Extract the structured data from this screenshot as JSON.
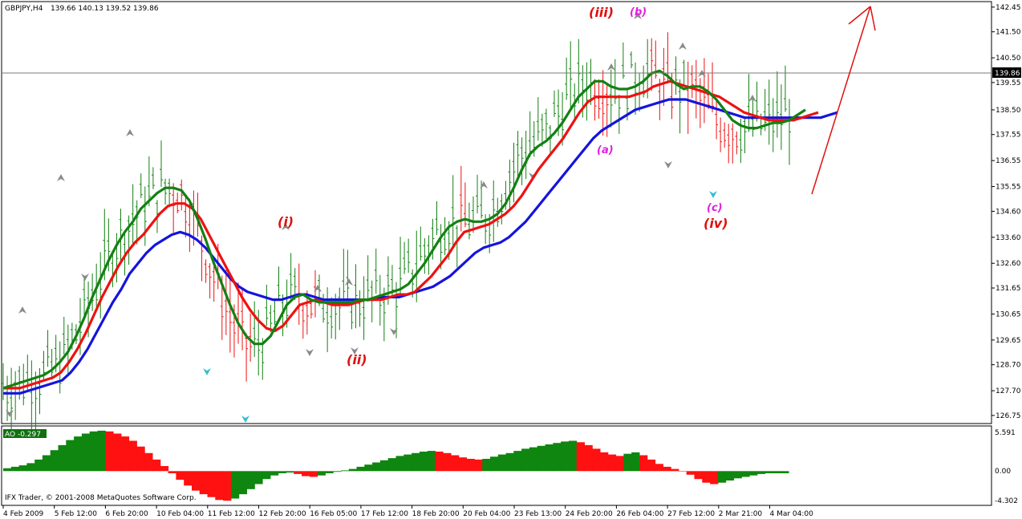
{
  "header": {
    "symbol": "GBPJPY,H4",
    "ohlc": "139.66 140.13 139.52 139.86"
  },
  "price_axis": {
    "ticks": [
      "142.45",
      "141.50",
      "140.50",
      "139.55",
      "138.50",
      "137.55",
      "136.55",
      "135.55",
      "134.60",
      "133.60",
      "132.60",
      "131.65",
      "130.65",
      "129.65",
      "128.70",
      "127.70",
      "126.75"
    ],
    "current_price_label": "139.86"
  },
  "oscillator": {
    "label": "AO -0.297",
    "ticks": [
      "5.591",
      "0.00",
      "-4.302"
    ]
  },
  "copyright": "IFX Trader, © 2001-2008 MetaQuotes Software Corp.",
  "time_axis": {
    "labels": [
      "4 Feb 2009",
      "5 Feb 12:00",
      "6 Feb 20:00",
      "10 Feb 04:00",
      "11 Feb 12:00",
      "12 Feb 20:00",
      "16 Feb 05:00",
      "17 Feb 12:00",
      "18 Feb 20:00",
      "20 Feb 04:00",
      "23 Feb 13:00",
      "24 Feb 20:00",
      "26 Feb 04:00",
      "27 Feb 12:00",
      "2 Mar 21:00",
      "4 Mar 04:00"
    ]
  },
  "wave_labels": [
    {
      "text": "(i)",
      "color": "#e01010"
    },
    {
      "text": "(ii)",
      "color": "#e01010"
    },
    {
      "text": "(iii)",
      "color": "#e01010"
    },
    {
      "text": "(iv)",
      "color": "#e01010"
    },
    {
      "text": "(a)",
      "color": "#e020e0"
    },
    {
      "text": "(b)",
      "color": "#e020e0"
    },
    {
      "text": "(c)",
      "color": "#e020e0"
    }
  ],
  "colors": {
    "green_line": "#138013",
    "red_line": "#ee1111",
    "blue_line": "#1414dd",
    "bull_bar": "#138013",
    "bear_bar": "#ee1111",
    "ao_up": "#0f860f",
    "ao_down": "#ff1111"
  },
  "chart_data": {
    "type": "line",
    "title": "GBPJPY,H4",
    "ylim": [
      126.5,
      142.6
    ],
    "x_count": 100,
    "series": [
      {
        "values": [
          127.8,
          127.9,
          128.0,
          128.1,
          128.2,
          128.3,
          128.5,
          128.8,
          129.2,
          129.8,
          130.5,
          131.3,
          132.0,
          132.7,
          133.3,
          133.8,
          134.2,
          134.7,
          135.0,
          135.3,
          135.5,
          135.5,
          135.4,
          135.0,
          134.3,
          133.5,
          132.6,
          131.8,
          131.0,
          130.3,
          129.8,
          129.5,
          129.5,
          129.8,
          130.4,
          131.0,
          131.3,
          131.4,
          131.2,
          131.1,
          131.1,
          131.1,
          131.1,
          131.1,
          131.2,
          131.2,
          131.3,
          131.4,
          131.5,
          131.6,
          131.8,
          132.2,
          132.6,
          133.1,
          133.6,
          134.0,
          134.2,
          134.3,
          134.2,
          134.2,
          134.3,
          134.5,
          134.9,
          135.5,
          136.2,
          136.8,
          137.1,
          137.3,
          137.6,
          138.0,
          138.5,
          139.0,
          139.3,
          139.6,
          139.6,
          139.4,
          139.3,
          139.3,
          139.4,
          139.6,
          139.9,
          140.0,
          139.8,
          139.5,
          139.3,
          139.4,
          139.4,
          139.2,
          138.9,
          138.5,
          138.1,
          137.9,
          137.8,
          137.8,
          137.9,
          138.0,
          138.0,
          138.1,
          138.3,
          138.5
        ]
      },
      {
        "values": [
          127.8,
          127.8,
          127.8,
          127.9,
          128.0,
          128.1,
          128.2,
          128.4,
          128.8,
          129.3,
          129.9,
          130.6,
          131.3,
          131.9,
          132.5,
          133.0,
          133.4,
          133.7,
          134.1,
          134.5,
          134.8,
          134.9,
          134.9,
          134.7,
          134.3,
          133.7,
          133.1,
          132.5,
          131.9,
          131.3,
          130.8,
          130.4,
          130.1,
          130.0,
          130.2,
          130.6,
          131.0,
          131.1,
          131.2,
          131.1,
          131.0,
          131.0,
          131.0,
          131.1,
          131.2,
          131.2,
          131.2,
          131.3,
          131.4,
          131.4,
          131.5,
          131.8,
          132.1,
          132.5,
          132.9,
          133.4,
          133.8,
          133.9,
          134.0,
          134.1,
          134.3,
          134.5,
          134.8,
          135.2,
          135.7,
          136.2,
          136.6,
          137.0,
          137.4,
          137.9,
          138.4,
          138.8,
          139.0,
          139.0,
          139.0,
          139.0,
          139.0,
          139.1,
          139.2,
          139.4,
          139.5,
          139.6,
          139.5,
          139.4,
          139.3,
          139.2,
          139.1,
          139.0,
          138.8,
          138.6,
          138.4,
          138.3,
          138.2,
          138.1,
          138.1,
          138.1,
          138.1,
          138.2,
          138.3,
          138.4
        ]
      },
      {
        "values": [
          127.6,
          127.6,
          127.6,
          127.7,
          127.8,
          127.9,
          128.0,
          128.1,
          128.4,
          128.8,
          129.3,
          129.9,
          130.5,
          131.1,
          131.6,
          132.2,
          132.6,
          133.0,
          133.3,
          133.5,
          133.7,
          133.8,
          133.7,
          133.5,
          133.2,
          132.8,
          132.4,
          132.0,
          131.7,
          131.5,
          131.4,
          131.3,
          131.2,
          131.2,
          131.3,
          131.4,
          131.4,
          131.3,
          131.2,
          131.2,
          131.2,
          131.2,
          131.2,
          131.2,
          131.2,
          131.3,
          131.3,
          131.3,
          131.4,
          131.5,
          131.6,
          131.7,
          131.9,
          132.1,
          132.4,
          132.7,
          133.0,
          133.2,
          133.3,
          133.4,
          133.6,
          133.9,
          134.2,
          134.6,
          135.0,
          135.4,
          135.8,
          136.2,
          136.6,
          137.0,
          137.4,
          137.7,
          137.9,
          138.1,
          138.3,
          138.5,
          138.6,
          138.7,
          138.8,
          138.9,
          138.9,
          138.9,
          138.8,
          138.7,
          138.6,
          138.5,
          138.4,
          138.3,
          138.2,
          138.2,
          138.2,
          138.2,
          138.2,
          138.2,
          138.2,
          138.2,
          138.2,
          138.2,
          138.3,
          138.4
        ]
      }
    ],
    "ao_values": [
      0.4,
      0.6,
      0.8,
      1.1,
      1.6,
      2.2,
      2.9,
      3.6,
      4.3,
      4.8,
      5.2,
      5.5,
      5.6,
      5.5,
      5.2,
      4.8,
      4.2,
      3.4,
      2.5,
      1.6,
      0.7,
      -0.3,
      -1.2,
      -2.0,
      -2.7,
      -3.2,
      -3.6,
      -4.0,
      -4.1,
      -3.8,
      -3.2,
      -2.5,
      -1.8,
      -1.1,
      -0.6,
      -0.3,
      -0.2,
      -0.4,
      -0.7,
      -0.8,
      -0.6,
      -0.3,
      -0.1,
      0.1,
      0.3,
      0.6,
      0.9,
      1.2,
      1.5,
      1.8,
      2.1,
      2.3,
      2.5,
      2.7,
      2.8,
      2.7,
      2.5,
      2.2,
      1.9,
      1.7,
      1.6,
      1.7,
      2.0,
      2.3,
      2.5,
      2.8,
      3.1,
      3.3,
      3.5,
      3.7,
      3.9,
      4.1,
      4.2,
      4.0,
      3.6,
      3.1,
      2.6,
      2.3,
      2.1,
      2.4,
      2.6,
      2.2,
      1.6,
      1.0,
      0.6,
      0.3,
      0.0,
      -0.5,
      -1.1,
      -1.6,
      -1.8,
      -1.6,
      -1.3,
      -1.0,
      -0.8,
      -0.6,
      -0.4,
      -0.3,
      -0.3,
      -0.297
    ],
    "ao_ylim": [
      -4.302,
      5.591
    ]
  }
}
